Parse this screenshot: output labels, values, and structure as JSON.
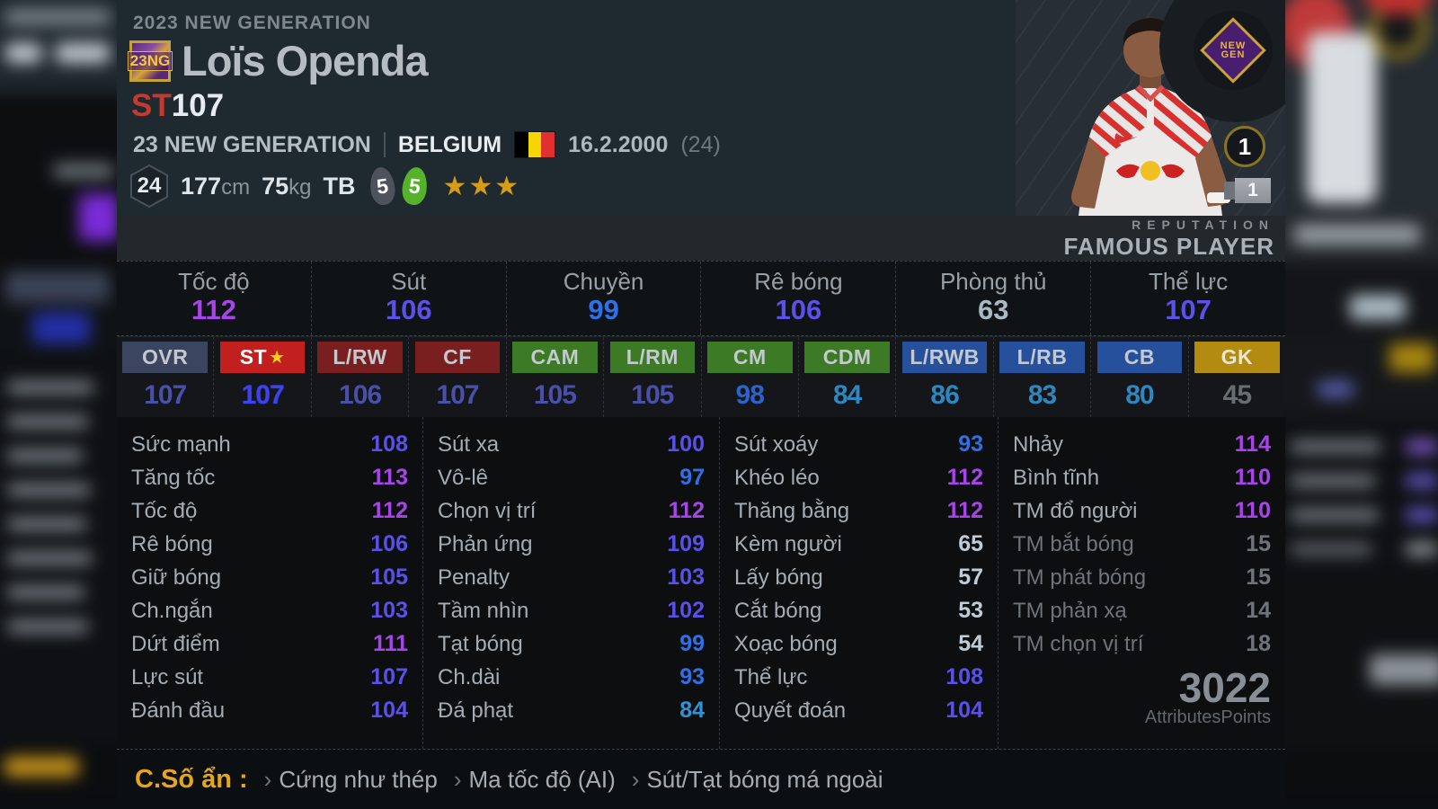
{
  "header": {
    "collection": "2023 NEW GENERATION",
    "badge": "23NG",
    "player_name": "Loïs Openda",
    "position": "ST",
    "overall": "107",
    "season": "23 NEW GENERATION",
    "nation": "BELGIUM",
    "birthdate": "16.2.2000",
    "age_paren": "(24)",
    "age_badge": "24",
    "height": "177",
    "height_unit": "cm",
    "weight": "75",
    "weight_unit": "kg",
    "foot_label": "TB",
    "weak_foot": "5",
    "strong_foot": "5",
    "stars": "★★★",
    "newgen_badge_text": "NEW GEN",
    "level_badge": "1",
    "tag_badge": "1"
  },
  "reputation": {
    "label": "REPUTATION",
    "value": "FAMOUS PLAYER"
  },
  "main_stats": [
    {
      "label": "Tốc độ",
      "value": 112
    },
    {
      "label": "Sút",
      "value": 106
    },
    {
      "label": "Chuyền",
      "value": 99
    },
    {
      "label": "Rê bóng",
      "value": 106
    },
    {
      "label": "Phòng thủ",
      "value": 63
    },
    {
      "label": "Thể lực",
      "value": 107
    }
  ],
  "positions": [
    {
      "label": "OVR",
      "value": 107,
      "type": "ovr",
      "active": false,
      "star": false
    },
    {
      "label": "ST",
      "value": 107,
      "type": "st",
      "active": true,
      "star": true
    },
    {
      "label": "L/RW",
      "value": 106,
      "type": "fw",
      "active": false,
      "star": false
    },
    {
      "label": "CF",
      "value": 107,
      "type": "fw",
      "active": false,
      "star": false
    },
    {
      "label": "CAM",
      "value": 105,
      "type": "mf",
      "active": false,
      "star": false
    },
    {
      "label": "L/RM",
      "value": 105,
      "type": "mf",
      "active": false,
      "star": false
    },
    {
      "label": "CM",
      "value": 98,
      "type": "mf",
      "active": false,
      "star": false
    },
    {
      "label": "CDM",
      "value": 84,
      "type": "mf",
      "active": false,
      "star": false
    },
    {
      "label": "L/RWB",
      "value": 86,
      "type": "df",
      "active": false,
      "star": false
    },
    {
      "label": "L/RB",
      "value": 83,
      "type": "df",
      "active": false,
      "star": false
    },
    {
      "label": "CB",
      "value": 80,
      "type": "df",
      "active": false,
      "star": false
    },
    {
      "label": "GK",
      "value": 45,
      "type": "gk",
      "active": false,
      "star": false
    }
  ],
  "attribute_columns": [
    [
      {
        "label": "Sức mạnh",
        "value": 108,
        "dim": false
      },
      {
        "label": "Tăng tốc",
        "value": 113,
        "dim": false
      },
      {
        "label": "Tốc độ",
        "value": 112,
        "dim": false
      },
      {
        "label": "Rê bóng",
        "value": 106,
        "dim": false
      },
      {
        "label": "Giữ bóng",
        "value": 105,
        "dim": false
      },
      {
        "label": "Ch.ngắn",
        "value": 103,
        "dim": false
      },
      {
        "label": "Dứt điểm",
        "value": 111,
        "dim": false
      },
      {
        "label": "Lực sút",
        "value": 107,
        "dim": false
      },
      {
        "label": "Đánh đầu",
        "value": 104,
        "dim": false
      }
    ],
    [
      {
        "label": "Sút xa",
        "value": 100,
        "dim": false
      },
      {
        "label": "Vô-lê",
        "value": 97,
        "dim": false
      },
      {
        "label": "Chọn vị trí",
        "value": 112,
        "dim": false
      },
      {
        "label": "Phản ứng",
        "value": 109,
        "dim": false
      },
      {
        "label": "Penalty",
        "value": 103,
        "dim": false
      },
      {
        "label": "Tầm nhìn",
        "value": 102,
        "dim": false
      },
      {
        "label": "Tạt bóng",
        "value": 99,
        "dim": false
      },
      {
        "label": "Ch.dài",
        "value": 93,
        "dim": false
      },
      {
        "label": "Đá phạt",
        "value": 84,
        "dim": false
      }
    ],
    [
      {
        "label": "Sút xoáy",
        "value": 93,
        "dim": false
      },
      {
        "label": "Khéo léo",
        "value": 112,
        "dim": false
      },
      {
        "label": "Thăng bằng",
        "value": 112,
        "dim": false
      },
      {
        "label": "Kèm người",
        "value": 65,
        "dim": false
      },
      {
        "label": "Lấy bóng",
        "value": 57,
        "dim": false
      },
      {
        "label": "Cắt bóng",
        "value": 53,
        "dim": false
      },
      {
        "label": "Xoạc bóng",
        "value": 54,
        "dim": false
      },
      {
        "label": "Thể lực",
        "value": 108,
        "dim": false
      },
      {
        "label": "Quyết đoán",
        "value": 104,
        "dim": false
      }
    ],
    [
      {
        "label": "Nhảy",
        "value": 114,
        "dim": false
      },
      {
        "label": "Bình tĩnh",
        "value": 110,
        "dim": false
      },
      {
        "label": "TM đổ người",
        "value": 110,
        "dim": false
      },
      {
        "label": "TM bắt bóng",
        "value": 15,
        "dim": true
      },
      {
        "label": "TM phát bóng",
        "value": 15,
        "dim": true
      },
      {
        "label": "TM phản xạ",
        "value": 14,
        "dim": true
      },
      {
        "label": "TM chọn vị trí",
        "value": 18,
        "dim": true
      }
    ]
  ],
  "points": {
    "value": "3022",
    "label": "AttributesPoints"
  },
  "hidden": {
    "label": "C.Số ẩn :",
    "items": [
      "Cứng như thép",
      "Ma tốc độ (AI)",
      "Sút/Tạt bóng má ngoài"
    ]
  },
  "icons": {
    "trait_separator": "›",
    "position_star": "★"
  },
  "colors": {
    "tier_110_plus": "#a845e8",
    "tier_100s": "#5b50e8",
    "tier_90s": "#2e70e8",
    "tier_80s": "#2f93d6",
    "tier_low": "#c0cdd6",
    "tier_dim": "#6e747a",
    "pos_active_value": "#3c42ee",
    "pos_100s": "#4a50aa",
    "pos_90s": "#2b63cc",
    "pos_80s": "#2f87c0",
    "pos_low": "#666d73",
    "badge_ovr": "#3c455f",
    "badge_st": "#c21f1f",
    "badge_fw": "#7a1f1f",
    "badge_mf": "#3c7a26",
    "badge_df": "#27509c",
    "badge_gk": "#b28b10",
    "gold_accent": "#e5a51d",
    "st_red": "#c23a30",
    "flag_belgium": [
      "#000000",
      "#f6d600",
      "#e03030"
    ]
  }
}
